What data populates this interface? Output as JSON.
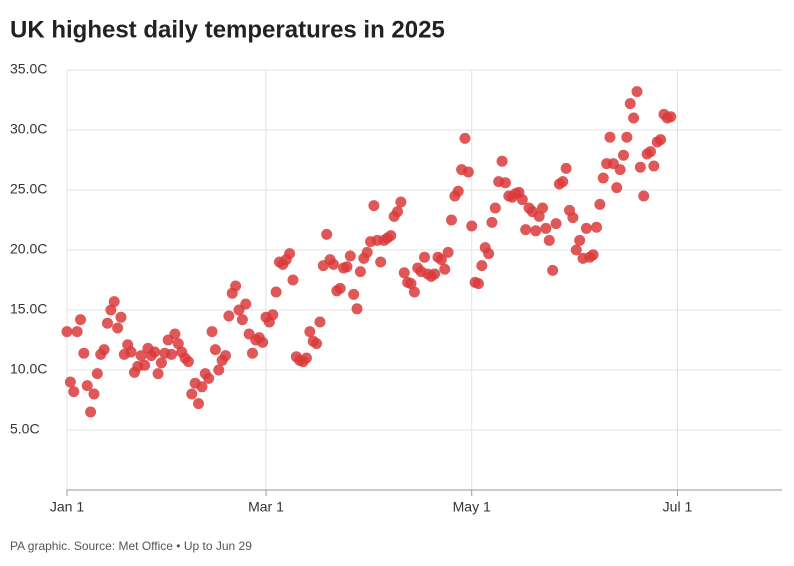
{
  "chart_data": {
    "type": "scatter",
    "title": "UK highest daily temperatures in 2025",
    "source": "PA graphic. Source: Met Office • Up to Jun 29",
    "color": "#d93a3a",
    "grid": true,
    "xlim": [
      1,
      213
    ],
    "ylim": [
      0,
      35
    ],
    "xticks": [
      {
        "value": 1,
        "label": "Jan 1"
      },
      {
        "value": 60,
        "label": "Mar 1"
      },
      {
        "value": 121,
        "label": "May 1"
      },
      {
        "value": 182,
        "label": "Jul 1"
      }
    ],
    "yticks": [
      {
        "value": 5,
        "label": "5.0C"
      },
      {
        "value": 10,
        "label": "10.0C"
      },
      {
        "value": 15,
        "label": "15.0C"
      },
      {
        "value": 20,
        "label": "20.0C"
      },
      {
        "value": 25,
        "label": "25.0C"
      },
      {
        "value": 30,
        "label": "30.0C"
      },
      {
        "value": 35,
        "label": "35.0C"
      }
    ],
    "x": [
      1,
      2,
      3,
      4,
      5,
      6,
      7,
      8,
      9,
      10,
      11,
      12,
      13,
      14,
      15,
      16,
      17,
      18,
      19,
      20,
      21,
      22,
      23,
      24,
      25,
      26,
      27,
      28,
      29,
      30,
      31,
      32,
      33,
      34,
      35,
      36,
      37,
      38,
      39,
      40,
      41,
      42,
      43,
      44,
      45,
      46,
      47,
      48,
      49,
      50,
      51,
      52,
      53,
      54,
      55,
      56,
      57,
      58,
      59,
      60,
      61,
      62,
      63,
      64,
      65,
      66,
      67,
      68,
      69,
      70,
      71,
      72,
      73,
      74,
      75,
      76,
      77,
      78,
      79,
      80,
      81,
      82,
      83,
      84,
      85,
      86,
      87,
      88,
      89,
      90,
      91,
      92,
      93,
      94,
      95,
      96,
      97,
      98,
      99,
      100,
      101,
      102,
      103,
      104,
      105,
      106,
      107,
      108,
      109,
      110,
      111,
      112,
      113,
      114,
      115,
      116,
      117,
      118,
      119,
      120,
      121,
      122,
      123,
      124,
      125,
      126,
      127,
      128,
      129,
      130,
      131,
      132,
      133,
      134,
      135,
      136,
      137,
      138,
      139,
      140,
      141,
      142,
      143,
      144,
      145,
      146,
      147,
      148,
      149,
      150,
      151,
      152,
      153,
      154,
      155,
      156,
      157,
      158,
      159,
      160,
      161,
      162,
      163,
      164,
      165,
      166,
      167,
      168,
      169,
      170,
      171,
      172,
      173,
      174,
      175,
      176,
      177,
      178,
      179,
      180
    ],
    "values": [
      13.2,
      9.0,
      8.2,
      13.2,
      14.2,
      11.4,
      8.7,
      6.5,
      8.0,
      9.7,
      11.3,
      11.7,
      13.9,
      15.0,
      15.7,
      13.5,
      14.4,
      11.3,
      12.1,
      11.5,
      9.8,
      10.3,
      11.2,
      10.4,
      11.8,
      11.2,
      11.5,
      9.7,
      10.6,
      11.4,
      12.5,
      11.3,
      13.0,
      12.2,
      11.5,
      11.0,
      10.7,
      8.0,
      8.9,
      7.2,
      8.6,
      9.7,
      9.3,
      13.2,
      11.7,
      10.0,
      10.8,
      11.2,
      14.5,
      16.4,
      17.0,
      15.0,
      14.2,
      15.5,
      13.0,
      11.4,
      12.5,
      12.7,
      12.3,
      14.4,
      14.0,
      14.6,
      16.5,
      19.0,
      18.8,
      19.2,
      19.7,
      17.5,
      11.1,
      10.8,
      10.7,
      11.0,
      13.2,
      12.4,
      12.2,
      14.0,
      18.7,
      21.3,
      19.2,
      18.8,
      16.6,
      16.8,
      18.5,
      18.6,
      19.5,
      16.3,
      15.1,
      18.2,
      19.3,
      19.8,
      20.7,
      23.7,
      20.8,
      19.0,
      20.8,
      21.0,
      21.2,
      22.8,
      23.2,
      24.0,
      18.1,
      17.3,
      17.2,
      16.5,
      18.5,
      18.2,
      19.4,
      18.0,
      17.8,
      18.0,
      19.4,
      19.2,
      18.4,
      19.8,
      22.5,
      24.5,
      24.9,
      26.7,
      29.3,
      26.5,
      22.0,
      17.3,
      17.2,
      18.7,
      20.2,
      19.7,
      22.3,
      23.5,
      25.7,
      27.4,
      25.6,
      24.5,
      24.4,
      24.7,
      24.8,
      24.2,
      21.7,
      23.5,
      23.2,
      21.6,
      22.8,
      23.5,
      21.8,
      20.8,
      18.3,
      22.2,
      25.5,
      25.7,
      26.8,
      23.3,
      22.7,
      20.0,
      20.8,
      19.3,
      21.8,
      19.4,
      19.6,
      21.9,
      23.8,
      26.0,
      27.2,
      29.4,
      27.2,
      25.2,
      26.7,
      27.9,
      29.4,
      32.2,
      31.0,
      33.2,
      26.9,
      24.5,
      28.0,
      28.2,
      27.0,
      29.0,
      29.2,
      31.3,
      31.0,
      31.1
    ]
  }
}
